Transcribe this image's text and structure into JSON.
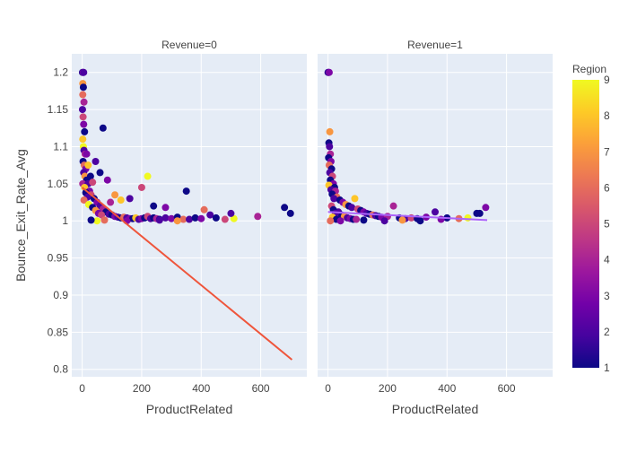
{
  "chart_data": {
    "type": "scatter",
    "ylabel": "Bounce_Exit_Rate_Avg",
    "ylim": [
      0.79,
      1.225
    ],
    "y_ticks": [
      "0.8",
      "0.85",
      "0.9",
      "0.95",
      "1",
      "1.05",
      "1.1",
      "1.15",
      "1.2"
    ],
    "y_tick_values": [
      0.8,
      0.85,
      0.9,
      0.95,
      1.0,
      1.05,
      1.1,
      1.15,
      1.2
    ],
    "x_ticks": [
      "0",
      "200",
      "400",
      "600"
    ],
    "x_tick_values": [
      0,
      200,
      400,
      600
    ],
    "xlim": [
      -35,
      755
    ],
    "colorbar": {
      "title": "Region",
      "min": 1,
      "max": 9,
      "ticks": [
        "1",
        "2",
        "3",
        "4",
        "5",
        "6",
        "7",
        "8",
        "9"
      ],
      "colors": [
        "#0d0887",
        "#46039f",
        "#7201a8",
        "#9c179e",
        "#bd3786",
        "#d8576b",
        "#ed7953",
        "#fb9f3a",
        "#fdca26",
        "#f0f921"
      ]
    },
    "facets": [
      {
        "title": "Revenue=0",
        "xlabel": "ProductRelated",
        "trendline": {
          "x": [
            0,
            705
          ],
          "y": [
            1.045,
            0.813
          ],
          "color": "#ef553b"
        },
        "points": [
          [
            1,
            1.2,
            1
          ],
          [
            3,
            1.2,
            3
          ],
          [
            5,
            1.2,
            2
          ],
          [
            2,
            1.185,
            7
          ],
          [
            4,
            1.18,
            1
          ],
          [
            2,
            1.17,
            6
          ],
          [
            6,
            1.16,
            4
          ],
          [
            1,
            1.15,
            2
          ],
          [
            3,
            1.14,
            5
          ],
          [
            5,
            1.13,
            3
          ],
          [
            8,
            1.12,
            1
          ],
          [
            2,
            1.11,
            8
          ],
          [
            4,
            1.1,
            9
          ],
          [
            6,
            1.095,
            2
          ],
          [
            10,
            1.09,
            4
          ],
          [
            3,
            1.08,
            1
          ],
          [
            7,
            1.075,
            6
          ],
          [
            12,
            1.07,
            3
          ],
          [
            5,
            1.065,
            2
          ],
          [
            9,
            1.06,
            7
          ],
          [
            15,
            1.055,
            1
          ],
          [
            2,
            1.05,
            4
          ],
          [
            20,
            1.05,
            2
          ],
          [
            8,
            1.045,
            8
          ],
          [
            25,
            1.04,
            3
          ],
          [
            12,
            1.038,
            1
          ],
          [
            30,
            1.035,
            5
          ],
          [
            18,
            1.032,
            2
          ],
          [
            40,
            1.03,
            1
          ],
          [
            6,
            1.028,
            6
          ],
          [
            50,
            1.025,
            3
          ],
          [
            22,
            1.022,
            9
          ],
          [
            60,
            1.02,
            2
          ],
          [
            35,
            1.018,
            1
          ],
          [
            70,
            1.016,
            4
          ],
          [
            45,
            1.014,
            7
          ],
          [
            80,
            1.012,
            1
          ],
          [
            55,
            1.01,
            3
          ],
          [
            90,
            1.009,
            2
          ],
          [
            65,
            1.008,
            5
          ],
          [
            100,
            1.008,
            1
          ],
          [
            110,
            1.006,
            3
          ],
          [
            120,
            1.005,
            2
          ],
          [
            130,
            1.004,
            1
          ],
          [
            140,
            1.005,
            6
          ],
          [
            150,
            1.004,
            2
          ],
          [
            160,
            1.003,
            3
          ],
          [
            170,
            1.003,
            1
          ],
          [
            180,
            1.004,
            8
          ],
          [
            190,
            1.002,
            2
          ],
          [
            200,
            1.003,
            3
          ],
          [
            210,
            1.004,
            1
          ],
          [
            220,
            1.006,
            5
          ],
          [
            230,
            1.003,
            2
          ],
          [
            240,
            1.004,
            1
          ],
          [
            250,
            1.003,
            4
          ],
          [
            260,
            1.002,
            1
          ],
          [
            280,
            1.004,
            2
          ],
          [
            300,
            1.003,
            3
          ],
          [
            320,
            1.005,
            1
          ],
          [
            340,
            1.002,
            6
          ],
          [
            360,
            1.002,
            2
          ],
          [
            380,
            1.004,
            1
          ],
          [
            400,
            1.003,
            3
          ],
          [
            430,
            1.008,
            2
          ],
          [
            450,
            1.004,
            1
          ],
          [
            480,
            1.002,
            5
          ],
          [
            510,
            1.003,
            9
          ],
          [
            590,
            1.006,
            4
          ],
          [
            680,
            1.018,
            1
          ],
          [
            700,
            1.01,
            1
          ],
          [
            70,
            1.125,
            1
          ],
          [
            45,
            1.08,
            2
          ],
          [
            60,
            1.065,
            1
          ],
          [
            220,
            1.06,
            9
          ],
          [
            200,
            1.045,
            5
          ],
          [
            350,
            1.04,
            1
          ],
          [
            85,
            1.055,
            3
          ],
          [
            110,
            1.035,
            7
          ],
          [
            160,
            1.03,
            2
          ],
          [
            130,
            1.028,
            8
          ],
          [
            95,
            1.025,
            4
          ],
          [
            240,
            1.02,
            1
          ],
          [
            280,
            1.018,
            3
          ],
          [
            410,
            1.015,
            6
          ],
          [
            500,
            1.01,
            2
          ],
          [
            50,
            1.0,
            9
          ],
          [
            150,
            1.0,
            3
          ],
          [
            320,
            1.0,
            7
          ],
          [
            30,
            1.001,
            1
          ],
          [
            75,
            1.001,
            6
          ],
          [
            260,
            1.001,
            2
          ],
          [
            15,
            1.09,
            3
          ],
          [
            20,
            1.075,
            8
          ],
          [
            28,
            1.06,
            1
          ],
          [
            35,
            1.052,
            5
          ]
        ]
      },
      {
        "title": "Revenue=1",
        "xlabel": "ProductRelated",
        "trendline": {
          "x": [
            0,
            535
          ],
          "y": [
            1.012,
            1.001
          ],
          "color": "#ab63fa"
        },
        "points": [
          [
            0,
            1.2,
            2
          ],
          [
            2,
            1.2,
            1
          ],
          [
            4,
            1.2,
            3
          ],
          [
            6,
            1.12,
            7
          ],
          [
            3,
            1.105,
            1
          ],
          [
            5,
            1.1,
            2
          ],
          [
            8,
            1.09,
            4
          ],
          [
            2,
            1.085,
            1
          ],
          [
            10,
            1.08,
            3
          ],
          [
            4,
            1.075,
            6
          ],
          [
            12,
            1.07,
            1
          ],
          [
            6,
            1.065,
            2
          ],
          [
            15,
            1.06,
            5
          ],
          [
            8,
            1.055,
            1
          ],
          [
            18,
            1.05,
            3
          ],
          [
            3,
            1.048,
            8
          ],
          [
            22,
            1.045,
            1
          ],
          [
            10,
            1.042,
            2
          ],
          [
            25,
            1.04,
            4
          ],
          [
            14,
            1.036,
            1
          ],
          [
            30,
            1.032,
            6
          ],
          [
            20,
            1.03,
            2
          ],
          [
            40,
            1.028,
            1
          ],
          [
            50,
            1.025,
            3
          ],
          [
            60,
            1.022,
            7
          ],
          [
            70,
            1.02,
            1
          ],
          [
            80,
            1.018,
            2
          ],
          [
            90,
            1.03,
            8
          ],
          [
            100,
            1.016,
            5
          ],
          [
            110,
            1.014,
            1
          ],
          [
            120,
            1.012,
            3
          ],
          [
            130,
            1.01,
            2
          ],
          [
            140,
            1.009,
            1
          ],
          [
            150,
            1.008,
            6
          ],
          [
            160,
            1.007,
            2
          ],
          [
            170,
            1.006,
            1
          ],
          [
            180,
            1.005,
            3
          ],
          [
            200,
            1.006,
            4
          ],
          [
            220,
            1.02,
            4
          ],
          [
            240,
            1.004,
            1
          ],
          [
            260,
            1.003,
            2
          ],
          [
            280,
            1.004,
            5
          ],
          [
            300,
            1.003,
            1
          ],
          [
            330,
            1.005,
            3
          ],
          [
            360,
            1.012,
            2
          ],
          [
            400,
            1.004,
            1
          ],
          [
            440,
            1.003,
            6
          ],
          [
            470,
            1.004,
            9
          ],
          [
            500,
            1.01,
            1
          ],
          [
            510,
            1.01,
            1
          ],
          [
            530,
            1.018,
            3
          ],
          [
            35,
            1.012,
            2
          ],
          [
            45,
            1.008,
            1
          ],
          [
            55,
            1.006,
            7
          ],
          [
            65,
            1.004,
            2
          ],
          [
            75,
            1.003,
            3
          ],
          [
            85,
            1.002,
            1
          ],
          [
            95,
            1.002,
            4
          ],
          [
            12,
            1.02,
            5
          ],
          [
            18,
            1.015,
            1
          ],
          [
            25,
            1.01,
            2
          ],
          [
            15,
            1.005,
            8
          ],
          [
            28,
            1.002,
            1
          ],
          [
            8,
            1.0,
            6
          ],
          [
            42,
            1.0,
            3
          ],
          [
            120,
            1.001,
            1
          ],
          [
            190,
            1.0,
            2
          ],
          [
            250,
            1.001,
            7
          ],
          [
            310,
            1.0,
            1
          ],
          [
            380,
            1.002,
            3
          ]
        ]
      }
    ]
  }
}
